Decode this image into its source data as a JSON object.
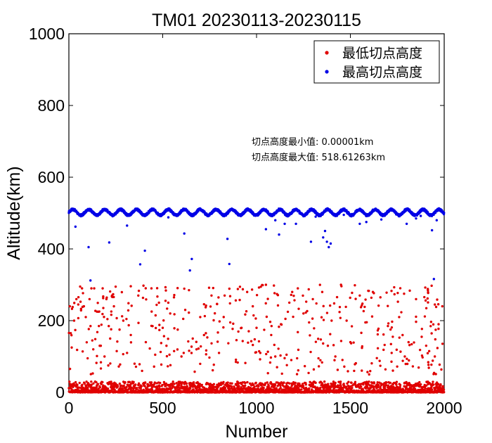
{
  "chart_data": {
    "type": "scatter",
    "title": "TM01 20230113-20230115",
    "xlabel": "Number",
    "ylabel": "Altitude(km)",
    "xlim": [
      0,
      2000
    ],
    "ylim": [
      0,
      1000
    ],
    "xticks": [
      0,
      500,
      1000,
      1500,
      2000
    ],
    "yticks": [
      0,
      200,
      400,
      600,
      800,
      1000
    ],
    "grid": false,
    "legend_position": "top-right",
    "series": [
      {
        "name": "最低切点高度",
        "color": "#e00000",
        "n_points": 2000,
        "band_low_range": [
          0,
          30
        ],
        "band_high_range": [
          50,
          300
        ],
        "highlighted_points": [
          [
            5,
            240
          ],
          [
            10,
            165
          ],
          [
            15,
            125
          ],
          [
            20,
            238
          ],
          [
            28,
            200
          ],
          [
            40,
            260
          ],
          [
            50,
            245
          ],
          [
            60,
            295
          ],
          [
            70,
            290
          ],
          [
            80,
            240
          ],
          [
            90,
            210
          ],
          [
            100,
            95
          ],
          [
            110,
            260
          ],
          [
            120,
            290
          ],
          [
            130,
            120
          ],
          [
            140,
            30
          ],
          [
            150,
            225
          ],
          [
            160,
            185
          ],
          [
            170,
            130
          ],
          [
            180,
            290
          ],
          [
            190,
            100
          ],
          [
            200,
            260
          ],
          [
            210,
            75
          ],
          [
            220,
            150
          ],
          [
            230,
            270
          ],
          [
            240,
            240
          ],
          [
            255,
            115
          ],
          [
            270,
            175
          ],
          [
            290,
            200
          ],
          [
            310,
            110
          ],
          [
            330,
            160
          ],
          [
            350,
            80
          ],
          [
            370,
            270
          ],
          [
            390,
            60
          ],
          [
            410,
            140
          ],
          [
            440,
            290
          ],
          [
            460,
            105
          ],
          [
            480,
            250
          ],
          [
            500,
            180
          ],
          [
            520,
            130
          ],
          [
            540,
            220
          ],
          [
            560,
            265
          ],
          [
            580,
            175
          ],
          [
            600,
            100
          ],
          [
            620,
            230
          ],
          [
            640,
            285
          ],
          [
            660,
            150
          ],
          [
            680,
            120
          ],
          [
            700,
            210
          ],
          [
            730,
            165
          ],
          [
            760,
            270
          ],
          [
            800,
            110
          ],
          [
            830,
            270
          ],
          [
            860,
            195
          ],
          [
            890,
            85
          ],
          [
            920,
            180
          ],
          [
            950,
            280
          ],
          [
            980,
            240
          ],
          [
            1000,
            180
          ],
          [
            1020,
            110
          ],
          [
            1050,
            300
          ],
          [
            1080,
            185
          ],
          [
            1100,
            100
          ],
          [
            1130,
            190
          ],
          [
            1160,
            105
          ],
          [
            1190,
            280
          ],
          [
            1220,
            290
          ],
          [
            1250,
            220
          ],
          [
            1280,
            195
          ],
          [
            1300,
            260
          ],
          [
            1330,
            95
          ],
          [
            1350,
            280
          ],
          [
            1380,
            130
          ],
          [
            1400,
            200
          ],
          [
            1420,
            100
          ],
          [
            1450,
            300
          ],
          [
            1480,
            200
          ],
          [
            1500,
            140
          ],
          [
            1520,
            60
          ],
          [
            1550,
            270
          ],
          [
            1580,
            195
          ],
          [
            1600,
            50
          ],
          [
            1620,
            280
          ],
          [
            1660,
            265
          ],
          [
            1700,
            185
          ],
          [
            1720,
            110
          ],
          [
            1760,
            210
          ],
          [
            1790,
            100
          ],
          [
            1810,
            140
          ],
          [
            1850,
            260
          ],
          [
            1880,
            155
          ],
          [
            1920,
            115
          ],
          [
            1950,
            100
          ],
          [
            1970,
            190
          ],
          [
            1990,
            240
          ]
        ]
      },
      {
        "name": "最高切点高度",
        "color": "#0000e6",
        "n_points": 2000,
        "band_range": [
          490,
          515
        ],
        "outlier_points": [
          [
            35,
            462
          ],
          [
            105,
            405
          ],
          [
            115,
            312
          ],
          [
            215,
            418
          ],
          [
            310,
            465
          ],
          [
            380,
            357
          ],
          [
            405,
            395
          ],
          [
            530,
            488
          ],
          [
            615,
            443
          ],
          [
            645,
            340
          ],
          [
            655,
            372
          ],
          [
            845,
            428
          ],
          [
            855,
            358
          ],
          [
            1050,
            455
          ],
          [
            1100,
            480
          ],
          [
            1120,
            440
          ],
          [
            1150,
            470
          ],
          [
            1210,
            470
          ],
          [
            1290,
            420
          ],
          [
            1315,
            490
          ],
          [
            1355,
            432
          ],
          [
            1365,
            450
          ],
          [
            1375,
            420
          ],
          [
            1385,
            405
          ],
          [
            1395,
            415
          ],
          [
            1465,
            495
          ],
          [
            1550,
            470
          ],
          [
            1585,
            475
          ],
          [
            1665,
            482
          ],
          [
            1800,
            470
          ],
          [
            1850,
            485
          ],
          [
            1875,
            492
          ],
          [
            1935,
            452
          ],
          [
            1945,
            316
          ],
          [
            1960,
            480
          ]
        ]
      }
    ],
    "annotations": [
      "切点高度最小值: 0.00001km",
      "切点高度最大值: 518.61263km"
    ]
  }
}
